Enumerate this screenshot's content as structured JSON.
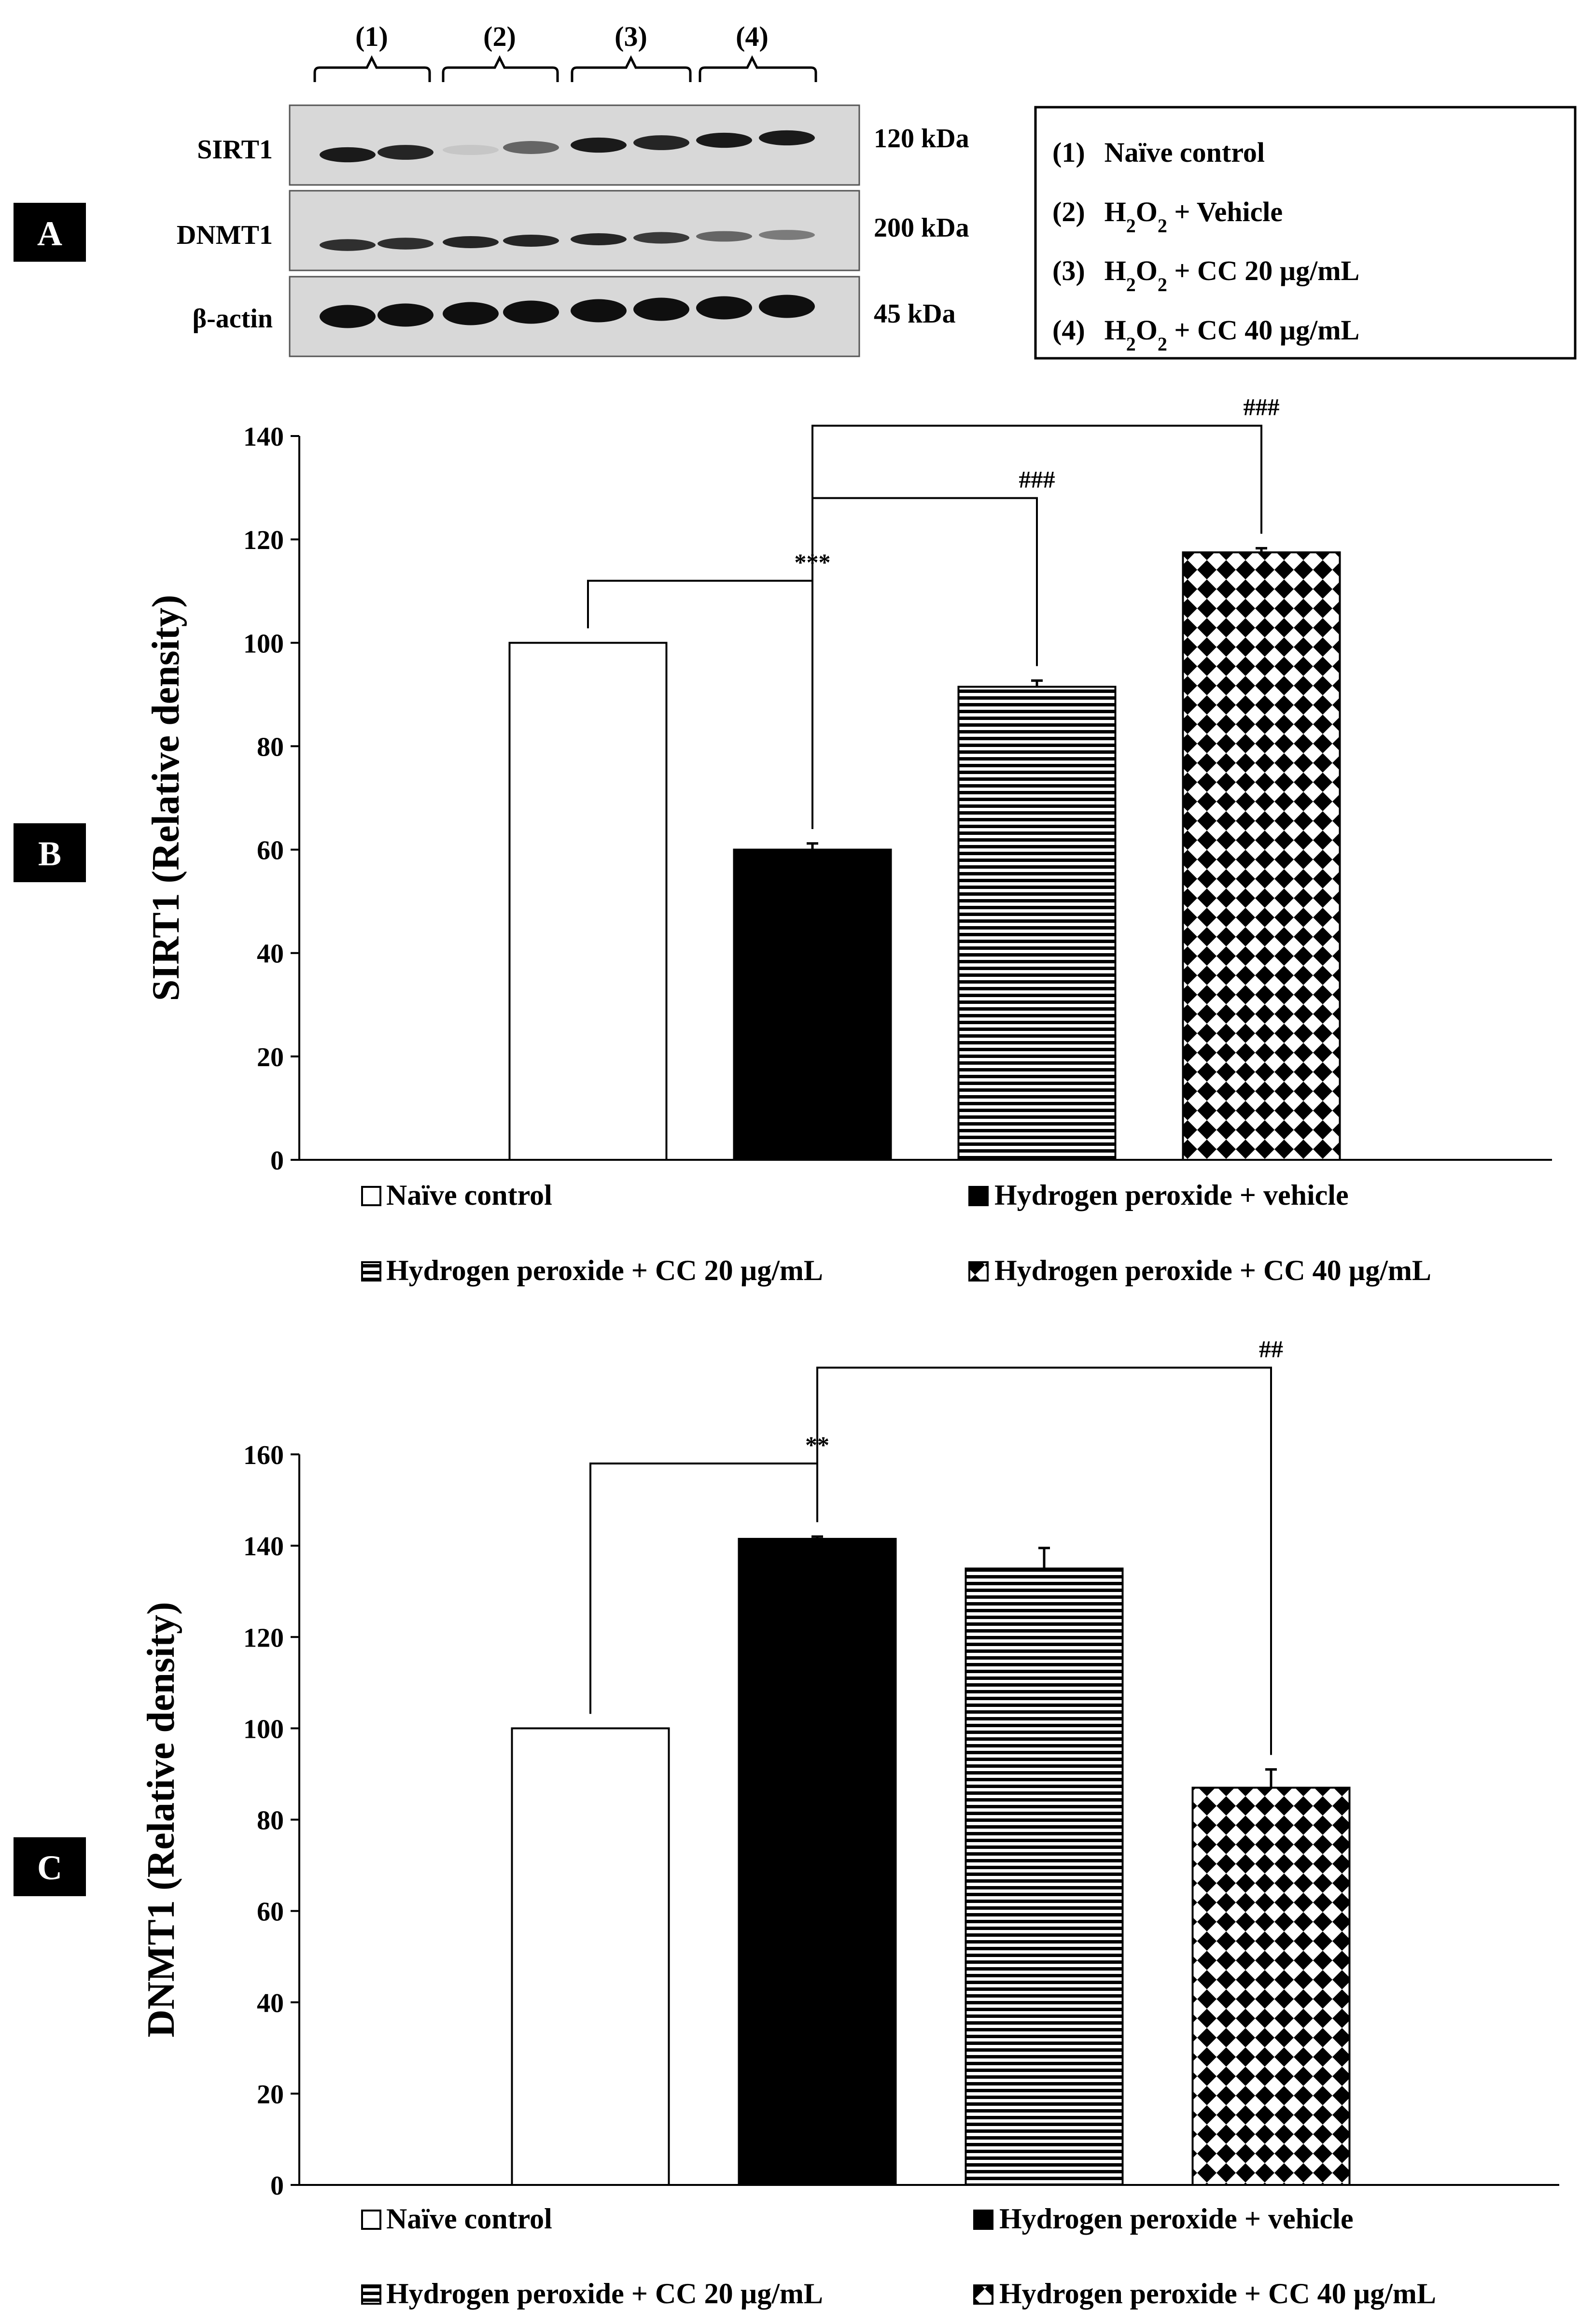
{
  "panel_A": {
    "label": "A",
    "lanes": [
      "(1)",
      "(2)",
      "(3)",
      "(4)"
    ],
    "rows": [
      {
        "label": "SIRT1",
        "kda": "120 kDa",
        "intensity": [
          0.95,
          0.9,
          0.15,
          0.6,
          0.95,
          0.9,
          0.95,
          0.95
        ]
      },
      {
        "label": "DNMT1",
        "kda": "200 kDa",
        "intensity": [
          0.85,
          0.85,
          0.9,
          0.9,
          0.9,
          0.8,
          0.6,
          0.5
        ]
      },
      {
        "label": "β-actin",
        "kda": "45  kDa",
        "intensity": [
          1,
          1,
          1,
          1,
          1,
          1,
          1,
          1
        ]
      }
    ],
    "legend": [
      {
        "num": "(1)",
        "parts": [
          {
            "t": "Naïve control"
          }
        ]
      },
      {
        "num": "(2)",
        "parts": [
          {
            "t": "H"
          },
          {
            "t": "2",
            "sub": true
          },
          {
            "t": "O"
          },
          {
            "t": "2",
            "sub": true
          },
          {
            "t": " + Vehicle"
          }
        ]
      },
      {
        "num": "(3)",
        "parts": [
          {
            "t": "H"
          },
          {
            "t": "2",
            "sub": true
          },
          {
            "t": "O"
          },
          {
            "t": "2",
            "sub": true
          },
          {
            "t": " + CC 20 µg/mL"
          }
        ]
      },
      {
        "num": "(4)",
        "parts": [
          {
            "t": "H"
          },
          {
            "t": "2",
            "sub": true
          },
          {
            "t": "O"
          },
          {
            "t": "2",
            "sub": true
          },
          {
            "t": " + CC 40 µg/mL"
          }
        ]
      }
    ]
  },
  "legend_labels": [
    "Naïve control",
    "Hydrogen peroxide + vehicle",
    "Hydrogen peroxide + CC 20 µg/mL",
    "Hydrogen peroxide + CC 40 µg/mL"
  ],
  "chart_data": [
    {
      "panel": "B",
      "type": "bar",
      "ylabel": "SIRT1 (Relative density)",
      "categories": [
        "Naïve control",
        "Hydrogen peroxide + vehicle",
        "Hydrogen peroxide + CC 20 µg/mL",
        "Hydrogen peroxide + CC 40 µg/mL"
      ],
      "values": [
        100,
        60,
        91.5,
        117.5
      ],
      "errors": [
        0,
        1.2,
        1.2,
        0.8
      ],
      "patterns": [
        "white",
        "black",
        "hstripe",
        "diamond"
      ],
      "ylim": [
        0,
        140
      ],
      "yticks": [
        0,
        20,
        40,
        60,
        80,
        100,
        120,
        140
      ],
      "significance": [
        {
          "from": 0,
          "to": 1,
          "label": "***",
          "level": 112
        },
        {
          "from": 1,
          "to": 2,
          "label": "###",
          "level": 128
        },
        {
          "from": 1,
          "to": 3,
          "label": "###",
          "level": 142
        }
      ]
    },
    {
      "panel": "C",
      "type": "bar",
      "ylabel": "DNMT1 (Relative density)",
      "categories": [
        "Naïve control",
        "Hydrogen peroxide + vehicle",
        "Hydrogen peroxide + CC 20 µg/mL",
        "Hydrogen peroxide + CC 40 µg/mL"
      ],
      "values": [
        100,
        141.5,
        135,
        87
      ],
      "errors": [
        0,
        0.5,
        4.5,
        4
      ],
      "patterns": [
        "white",
        "black",
        "hstripe",
        "diamond"
      ],
      "ylim": [
        0,
        160
      ],
      "yticks": [
        0,
        20,
        40,
        60,
        80,
        100,
        120,
        140,
        160
      ],
      "significance": [
        {
          "from": 0,
          "to": 1,
          "label": "**",
          "level": 158
        },
        {
          "from": 1,
          "to": 3,
          "label": "##",
          "level": 179
        }
      ]
    }
  ]
}
